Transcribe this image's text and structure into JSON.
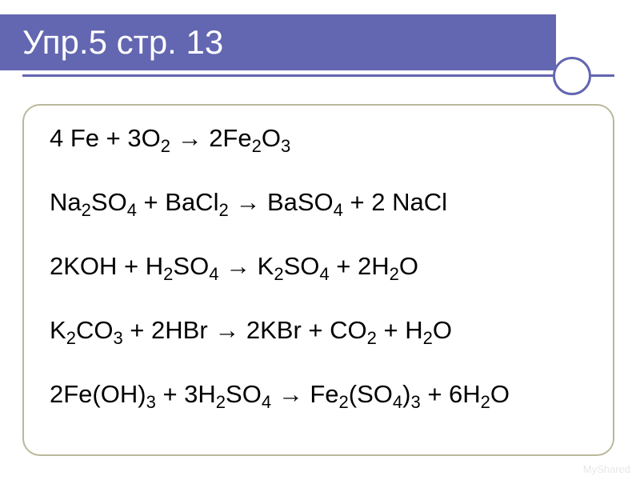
{
  "slide": {
    "title": "Упр.5 стр. 13",
    "title_fontsize": 42,
    "title_color": "#ffffff",
    "title_bar_color": "#6366b0",
    "underline_color": "#6366b0",
    "circle_border_color": "#6366b0",
    "frame_border_color": "#b9b89b",
    "background_color": "#ffffff",
    "equation_fontsize": 31,
    "equation_color": "#000000",
    "equations": [
      {
        "parts": [
          {
            "t": "4 Fe + 3O"
          },
          {
            "sub": "2"
          },
          {
            "t": " → 2Fe"
          },
          {
            "sub": "2"
          },
          {
            "t": "O"
          },
          {
            "sub": "3"
          }
        ]
      },
      {
        "parts": [
          {
            "t": "Na"
          },
          {
            "sub": "2"
          },
          {
            "t": "SO"
          },
          {
            "sub": "4"
          },
          {
            "t": " + BaCl"
          },
          {
            "sub": "2"
          },
          {
            "t": " → BaSO"
          },
          {
            "sub": "4"
          },
          {
            "t": " + 2 NaCl"
          }
        ]
      },
      {
        "parts": [
          {
            "t": "2KOH + H"
          },
          {
            "sub": "2"
          },
          {
            "t": "SO"
          },
          {
            "sub": "4"
          },
          {
            "t": " → K"
          },
          {
            "sub": "2"
          },
          {
            "t": "SO"
          },
          {
            "sub": "4"
          },
          {
            "t": " + 2H"
          },
          {
            "sub": "2"
          },
          {
            "t": "O"
          }
        ]
      },
      {
        "parts": [
          {
            "t": "K"
          },
          {
            "sub": "2"
          },
          {
            "t": "CO"
          },
          {
            "sub": "3"
          },
          {
            "t": " + 2HBr → 2KBr + CO"
          },
          {
            "sub": "2"
          },
          {
            "t": " + H"
          },
          {
            "sub": "2"
          },
          {
            "t": "O"
          }
        ]
      },
      {
        "parts": [
          {
            "t": "2Fe(OH)"
          },
          {
            "sub": "3"
          },
          {
            "t": " + 3H"
          },
          {
            "sub": "2"
          },
          {
            "t": "SO"
          },
          {
            "sub": "4"
          },
          {
            "t": " → Fe"
          },
          {
            "sub": "2"
          },
          {
            "t": "(SO"
          },
          {
            "sub": "4"
          },
          {
            "t": ")"
          },
          {
            "sub": "3"
          },
          {
            "t": " + 6H"
          },
          {
            "sub": "2"
          },
          {
            "t": "O"
          }
        ]
      }
    ],
    "watermark": "MyShared"
  }
}
